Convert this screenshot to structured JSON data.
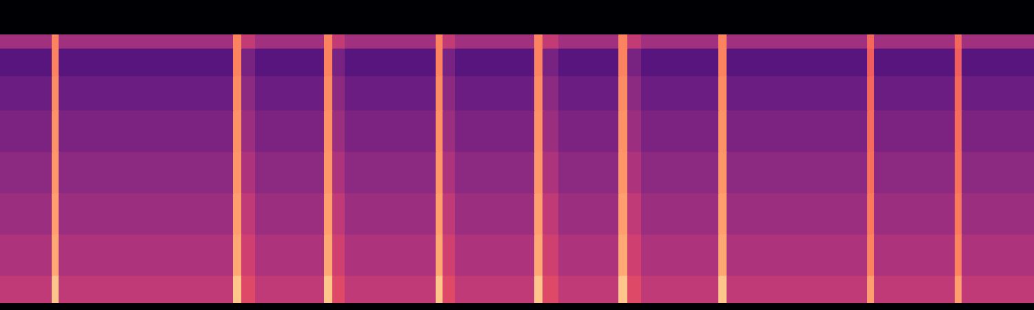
{
  "chart_data": {
    "type": "heatmap",
    "tick_labels": false,
    "color": "magma",
    "xlim": [
      0,
      1500
    ],
    "ylim": [
      0,
      390
    ],
    "zlim": [
      0,
      1
    ],
    "x_edges": [
      0,
      75,
      85,
      338,
      350,
      370,
      470,
      482,
      500,
      632,
      642,
      660,
      775,
      787,
      810,
      897,
      910,
      930,
      1042,
      1054,
      1258,
      1268,
      1385,
      1395,
      1500
    ],
    "y_edges": [
      0,
      40,
      100,
      160,
      220,
      280,
      330,
      370,
      390
    ],
    "values": [
      [
        0.52,
        0.88,
        0.52,
        0.88,
        0.6,
        0.52,
        0.88,
        0.6,
        0.52,
        0.88,
        0.6,
        0.52,
        0.88,
        0.6,
        0.52,
        0.88,
        0.6,
        0.52,
        0.88,
        0.52,
        0.8,
        0.52,
        0.8,
        0.52
      ],
      [
        0.48,
        0.82,
        0.48,
        0.82,
        0.56,
        0.48,
        0.82,
        0.56,
        0.48,
        0.82,
        0.56,
        0.48,
        0.82,
        0.56,
        0.48,
        0.82,
        0.56,
        0.48,
        0.82,
        0.48,
        0.74,
        0.48,
        0.74,
        0.48
      ],
      [
        0.44,
        0.8,
        0.44,
        0.8,
        0.52,
        0.44,
        0.8,
        0.52,
        0.44,
        0.8,
        0.52,
        0.44,
        0.8,
        0.52,
        0.44,
        0.8,
        0.52,
        0.44,
        0.8,
        0.44,
        0.72,
        0.44,
        0.72,
        0.44
      ],
      [
        0.4,
        0.78,
        0.4,
        0.78,
        0.48,
        0.4,
        0.78,
        0.48,
        0.4,
        0.78,
        0.48,
        0.4,
        0.78,
        0.48,
        0.4,
        0.78,
        0.48,
        0.4,
        0.78,
        0.4,
        0.7,
        0.4,
        0.7,
        0.4
      ],
      [
        0.36,
        0.77,
        0.36,
        0.77,
        0.44,
        0.36,
        0.77,
        0.44,
        0.36,
        0.77,
        0.44,
        0.36,
        0.77,
        0.44,
        0.36,
        0.77,
        0.44,
        0.36,
        0.77,
        0.36,
        0.69,
        0.36,
        0.69,
        0.36
      ],
      [
        0.32,
        0.76,
        0.32,
        0.76,
        0.4,
        0.32,
        0.76,
        0.4,
        0.32,
        0.76,
        0.4,
        0.32,
        0.76,
        0.4,
        0.32,
        0.76,
        0.4,
        0.32,
        0.76,
        0.32,
        0.68,
        0.32,
        0.68,
        0.32
      ],
      [
        0.27,
        0.74,
        0.27,
        0.74,
        0.35,
        0.27,
        0.74,
        0.35,
        0.27,
        0.74,
        0.35,
        0.27,
        0.74,
        0.35,
        0.27,
        0.74,
        0.35,
        0.27,
        0.74,
        0.27,
        0.66,
        0.27,
        0.66,
        0.27
      ],
      [
        0.45,
        0.74,
        0.45,
        0.74,
        0.53,
        0.45,
        0.74,
        0.53,
        0.45,
        0.74,
        0.53,
        0.45,
        0.74,
        0.53,
        0.45,
        0.74,
        0.53,
        0.45,
        0.74,
        0.45,
        0.68,
        0.45,
        0.68,
        0.45
      ]
    ]
  }
}
